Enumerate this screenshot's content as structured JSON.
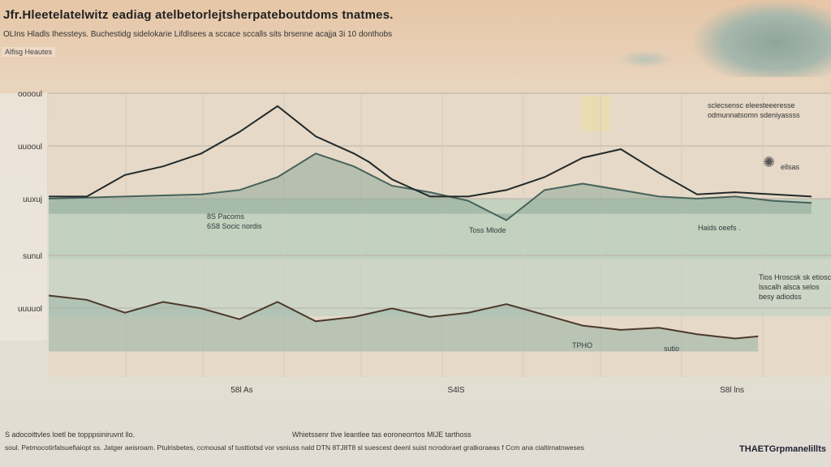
{
  "header": {
    "title": "Jfr.Hleetelatelwitz eadiag atelbetorlejtsherpateboutdoms tnatmes.",
    "subtitle": "OLIns Hladls Ihessteys. Buchestidg sidelokarie Lifdlsees a sccace sccalls sits brsenne acajja 3i 10 donthobs",
    "tag": "Alfisg    Heautes"
  },
  "notes": {
    "right_top": "sclecsensc eleesteeeresse\nodmunnatsomn sdeniyassss",
    "right_mid": "Tios Hroscsk sk etiosc\nlsscalh alsca selos\nbesy adiodss",
    "sun_label": "ellsas"
  },
  "footer": {
    "line1": "S adocoittvles loetl be topppsiniruvnt llo.",
    "line2": "Whietssenr tlve leantlee tas eoroneorrtos MlJE tarthoss",
    "line3": "soul. Petmocotirfalsuefiaiopt ss. Jatger aeisroam. Ptulrisbetes, ccmousal sf tusttiotsd vor vsniuss nald DTN 8TJ8T8 sl suescest deenl suist ncrodoraet gratkoraeas f Ccm ana cialtirnatnweses",
    "brand": "THAETGrpmanelillts"
  },
  "colors": {
    "line_dark": "#222a2a",
    "line_mid": "#46625a",
    "line_brown": "#7a5a3a",
    "area_upper": "#9fb8aa",
    "area_lower": "#86a89a",
    "band": "#c9d8c6"
  },
  "chart_data": {
    "type": "line",
    "title": "",
    "xlabel": "",
    "ylabel": "",
    "x_ticks": [
      "58l As",
      "S4lS",
      "S8l lns"
    ],
    "y_ticks": [
      "ooooul",
      "uuooul",
      "uuxuj",
      "sunul",
      "uuuuol"
    ],
    "annotations": [
      "8S Pacoms",
      "6S8 Socic nordis",
      "Toss  Mlode",
      "Haids  oeefs .",
      "TPHO",
      "sutio"
    ],
    "series": [
      {
        "x": [
          0,
          5,
          10,
          15,
          20,
          25,
          30,
          35,
          40,
          42,
          45,
          50,
          55,
          60,
          65,
          70,
          75,
          80,
          85,
          90,
          95,
          100
        ],
        "values": [
          0.52,
          0.52,
          0.62,
          0.66,
          0.72,
          0.82,
          0.94,
          0.8,
          0.72,
          0.68,
          0.6,
          0.52,
          0.52,
          0.55,
          0.61,
          0.7,
          0.74,
          0.63,
          0.53,
          0.54,
          0.53,
          0.52
        ]
      },
      {
        "x": [
          0,
          10,
          20,
          25,
          30,
          35,
          40,
          45,
          50,
          55,
          60,
          65,
          70,
          75,
          80,
          85,
          90,
          95,
          100
        ],
        "values": [
          0.51,
          0.52,
          0.53,
          0.55,
          0.61,
          0.72,
          0.66,
          0.57,
          0.54,
          0.5,
          0.41,
          0.55,
          0.58,
          0.55,
          0.52,
          0.51,
          0.52,
          0.5,
          0.49
        ]
      },
      {
        "x": [
          0,
          5,
          10,
          15,
          20,
          25,
          30,
          35,
          40,
          45,
          50,
          55,
          60,
          65,
          70,
          75,
          80,
          85,
          90,
          93
        ],
        "values": [
          0.06,
          0.04,
          -0.02,
          0.03,
          0.0,
          -0.05,
          0.03,
          -0.06,
          -0.04,
          0.0,
          -0.04,
          -0.02,
          0.02,
          -0.03,
          -0.08,
          -0.1,
          -0.09,
          -0.12,
          -0.14,
          -0.13
        ]
      }
    ],
    "ylim": [
      -0.3,
      1.0
    ],
    "grid": true,
    "legend": "none"
  }
}
